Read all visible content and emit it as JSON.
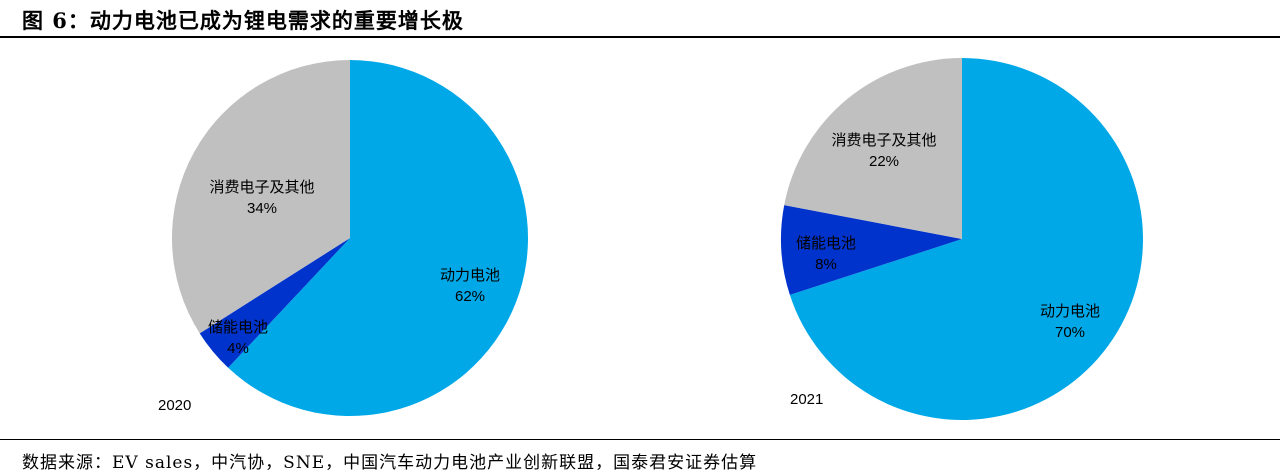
{
  "title": "图 6：动力电池已成为锂电需求的重要增长极",
  "source": "数据来源：EV sales，中汽协，SNE，中国汽车动力电池产业创新联盟，国泰君安证券估算",
  "chart_data": [
    {
      "type": "pie",
      "label": "2020",
      "slices": [
        {
          "name": "动力电池",
          "value": 62,
          "value_label": "62%",
          "color": "#00a8e8"
        },
        {
          "name": "储能电池",
          "value": 4,
          "value_label": "4%",
          "color": "#0033cc"
        },
        {
          "name": "消费电子及其他",
          "value": 34,
          "value_label": "34%",
          "color": "#c0c0c0"
        }
      ]
    },
    {
      "type": "pie",
      "label": "2021",
      "slices": [
        {
          "name": "动力电池",
          "value": 70,
          "value_label": "70%",
          "color": "#00a8e8"
        },
        {
          "name": "储能电池",
          "value": 8,
          "value_label": "8%",
          "color": "#0033cc"
        },
        {
          "name": "消费电子及其他",
          "value": 22,
          "value_label": "22%",
          "color": "#c0c0c0"
        }
      ]
    }
  ]
}
